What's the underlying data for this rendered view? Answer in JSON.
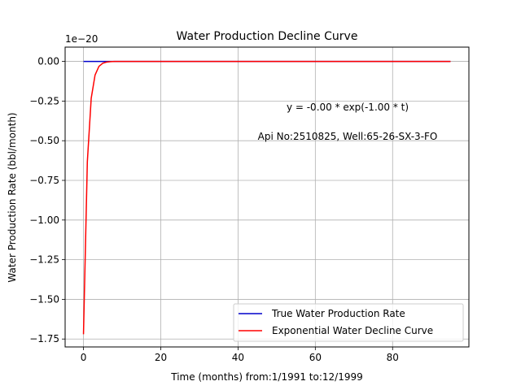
{
  "chart_data": {
    "type": "line",
    "title": "Water Production Decline Curve",
    "xlabel": "Time (months) from:1/1991 to:12/1999",
    "ylabel": "Water Production Rate (bbl/month)",
    "offset_label": "1e−20",
    "xlim": [
      -4.75,
      99.75
    ],
    "ylim": [
      -1.8,
      0.09
    ],
    "xticks": [
      0,
      20,
      40,
      60,
      80
    ],
    "xtick_labels": [
      "0",
      "20",
      "40",
      "60",
      "80"
    ],
    "yticks": [
      0.0,
      -0.25,
      -0.5,
      -0.75,
      -1.0,
      -1.25,
      -1.5,
      -1.75
    ],
    "ytick_labels": [
      "0.00",
      "−0.25",
      "−0.50",
      "−0.75",
      "−1.00",
      "−1.25",
      "−1.50",
      "−1.75"
    ],
    "grid": true,
    "legend_position": "lower-right",
    "annotations": [
      "y = -0.00 * exp(-1.00 * t)",
      "Api No:2510825, Well:65-26-SX-3-FO"
    ],
    "series": [
      {
        "name": "True Water Production Rate",
        "color": "#0000cc",
        "x": [
          0,
          95
        ],
        "y": [
          0,
          0
        ]
      },
      {
        "name": "Exponential Water Decline Curve",
        "color": "#ff0000",
        "model": {
          "a": -1.72,
          "b": -1.0
        },
        "x_range": [
          0,
          95
        ]
      }
    ]
  }
}
